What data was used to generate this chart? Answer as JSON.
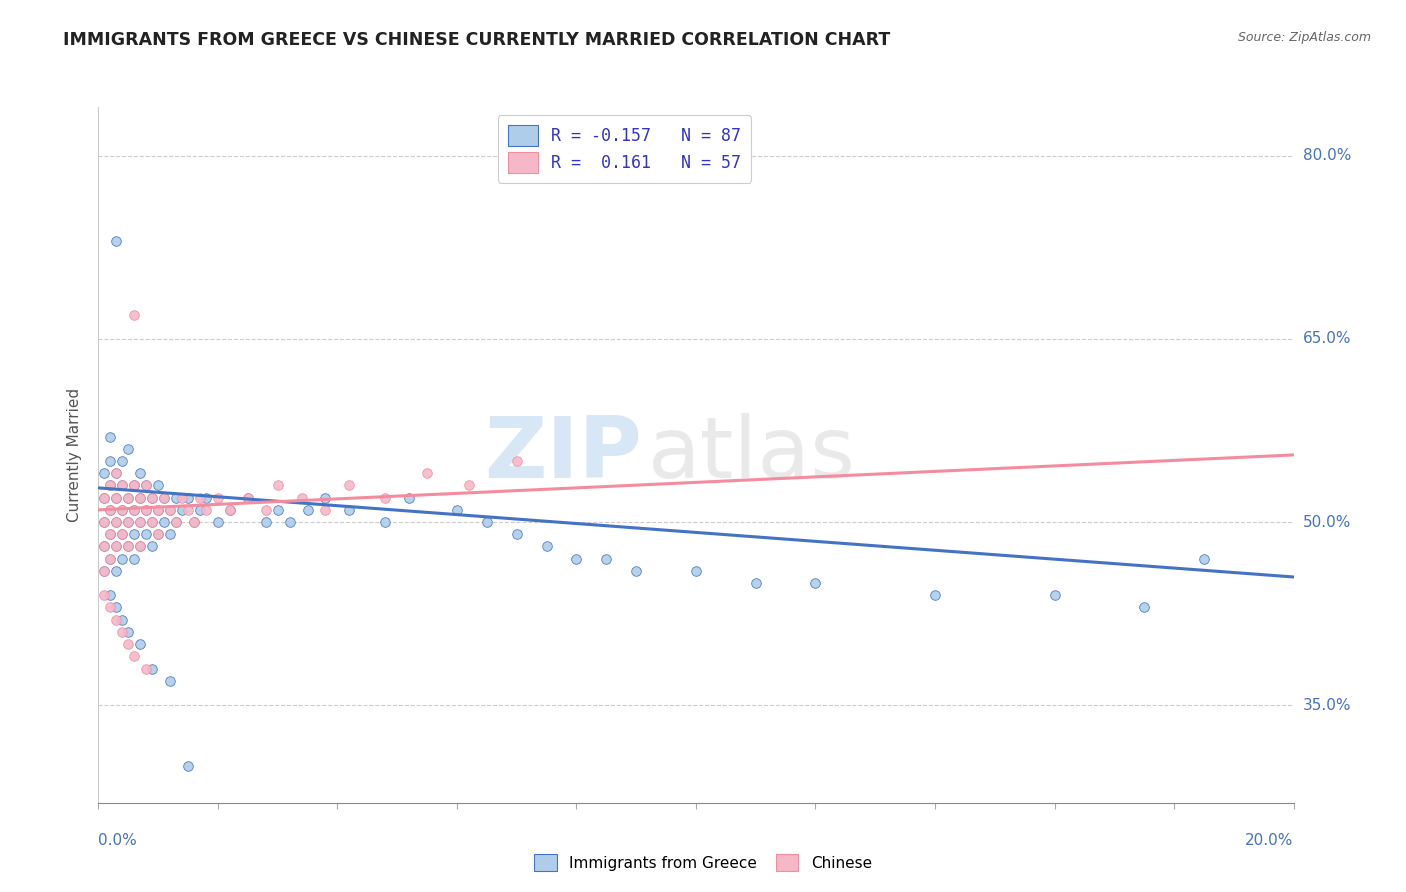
{
  "title": "IMMIGRANTS FROM GREECE VS CHINESE CURRENTLY MARRIED CORRELATION CHART",
  "source_text": "Source: ZipAtlas.com",
  "ylabel": "Currently Married",
  "legend_label_1": "Immigrants from Greece",
  "legend_label_2": "Chinese",
  "r1": -0.157,
  "n1": 87,
  "r2": 0.161,
  "n2": 57,
  "color_blue": "#aecde8",
  "color_pink": "#f4b8c8",
  "color_blue_line": "#4472c4",
  "color_pink_line": "#f48ca0",
  "xlim": [
    0.0,
    0.2
  ],
  "ylim": [
    0.27,
    0.84
  ],
  "yticks": [
    0.35,
    0.5,
    0.65,
    0.8
  ],
  "ytick_labels": [
    "35.0%",
    "50.0%",
    "65.0%",
    "80.0%"
  ],
  "watermark_zip": "ZIP",
  "watermark_atlas": "atlas",
  "blue_trend_x": [
    0.0,
    0.2
  ],
  "blue_trend_y": [
    0.528,
    0.455
  ],
  "pink_trend_x": [
    0.0,
    0.2
  ],
  "pink_trend_y": [
    0.51,
    0.555
  ],
  "blue_pts_x": [
    0.001,
    0.001,
    0.001,
    0.001,
    0.001,
    0.002,
    0.002,
    0.002,
    0.002,
    0.002,
    0.002,
    0.002,
    0.003,
    0.003,
    0.003,
    0.003,
    0.003,
    0.003,
    0.004,
    0.004,
    0.004,
    0.004,
    0.004,
    0.005,
    0.005,
    0.005,
    0.005,
    0.006,
    0.006,
    0.006,
    0.006,
    0.007,
    0.007,
    0.007,
    0.007,
    0.008,
    0.008,
    0.008,
    0.009,
    0.009,
    0.009,
    0.01,
    0.01,
    0.01,
    0.011,
    0.011,
    0.012,
    0.012,
    0.013,
    0.013,
    0.014,
    0.015,
    0.016,
    0.017,
    0.018,
    0.02,
    0.022,
    0.025,
    0.028,
    0.03,
    0.032,
    0.035,
    0.038,
    0.042,
    0.048,
    0.052,
    0.06,
    0.065,
    0.07,
    0.075,
    0.08,
    0.085,
    0.09,
    0.1,
    0.11,
    0.12,
    0.14,
    0.16,
    0.175,
    0.185,
    0.003,
    0.004,
    0.005,
    0.007,
    0.009,
    0.012,
    0.015
  ],
  "blue_pts_y": [
    0.5,
    0.52,
    0.54,
    0.48,
    0.46,
    0.51,
    0.53,
    0.55,
    0.49,
    0.47,
    0.44,
    0.57,
    0.52,
    0.54,
    0.5,
    0.48,
    0.46,
    0.73,
    0.51,
    0.53,
    0.49,
    0.47,
    0.55,
    0.52,
    0.5,
    0.48,
    0.56,
    0.51,
    0.53,
    0.49,
    0.47,
    0.52,
    0.54,
    0.5,
    0.48,
    0.51,
    0.53,
    0.49,
    0.52,
    0.5,
    0.48,
    0.51,
    0.53,
    0.49,
    0.52,
    0.5,
    0.51,
    0.49,
    0.52,
    0.5,
    0.51,
    0.52,
    0.5,
    0.51,
    0.52,
    0.5,
    0.51,
    0.52,
    0.5,
    0.51,
    0.5,
    0.51,
    0.52,
    0.51,
    0.5,
    0.52,
    0.51,
    0.5,
    0.49,
    0.48,
    0.47,
    0.47,
    0.46,
    0.46,
    0.45,
    0.45,
    0.44,
    0.44,
    0.43,
    0.47,
    0.43,
    0.42,
    0.41,
    0.4,
    0.38,
    0.37,
    0.3
  ],
  "pink_pts_x": [
    0.001,
    0.001,
    0.001,
    0.001,
    0.002,
    0.002,
    0.002,
    0.002,
    0.003,
    0.003,
    0.003,
    0.003,
    0.004,
    0.004,
    0.004,
    0.005,
    0.005,
    0.005,
    0.006,
    0.006,
    0.006,
    0.007,
    0.007,
    0.007,
    0.008,
    0.008,
    0.009,
    0.009,
    0.01,
    0.01,
    0.011,
    0.012,
    0.013,
    0.014,
    0.015,
    0.016,
    0.017,
    0.018,
    0.02,
    0.022,
    0.025,
    0.028,
    0.03,
    0.034,
    0.038,
    0.042,
    0.048,
    0.055,
    0.062,
    0.07,
    0.001,
    0.002,
    0.003,
    0.004,
    0.005,
    0.006,
    0.008
  ],
  "pink_pts_y": [
    0.5,
    0.52,
    0.48,
    0.46,
    0.51,
    0.53,
    0.49,
    0.47,
    0.52,
    0.54,
    0.5,
    0.48,
    0.51,
    0.53,
    0.49,
    0.52,
    0.5,
    0.48,
    0.51,
    0.53,
    0.67,
    0.52,
    0.5,
    0.48,
    0.51,
    0.53,
    0.52,
    0.5,
    0.51,
    0.49,
    0.52,
    0.51,
    0.5,
    0.52,
    0.51,
    0.5,
    0.52,
    0.51,
    0.52,
    0.51,
    0.52,
    0.51,
    0.53,
    0.52,
    0.51,
    0.53,
    0.52,
    0.54,
    0.53,
    0.55,
    0.44,
    0.43,
    0.42,
    0.41,
    0.4,
    0.39,
    0.38
  ]
}
